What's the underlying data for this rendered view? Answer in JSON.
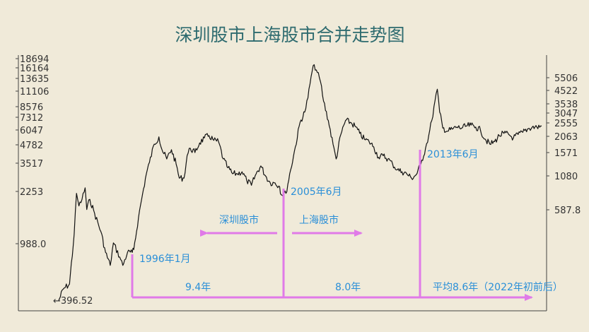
{
  "chart_data": {
    "type": "line",
    "title": "深圳股市上海股市合并走势图",
    "y_scale": "log",
    "left_axis_ticks": [
      "18694",
      "16164",
      "13635",
      "11106",
      "8576",
      "7312",
      "6047",
      "4782",
      "3517",
      "2253",
      "988.0"
    ],
    "right_axis_ticks": [
      "5506",
      "4522",
      "3538",
      "3047",
      "2555",
      "2063",
      "1571",
      "1080",
      "587.8"
    ],
    "min_label": "←396.52",
    "series": [
      {
        "x": [
          1991.3,
          1991.6,
          1992.0,
          1992.3,
          1992.45,
          1992.6,
          1992.8,
          1993.0,
          1993.1,
          1993.3,
          1993.6,
          1994.0,
          1994.3,
          1994.6,
          1994.8,
          1995.2,
          1995.4,
          1995.7,
          1996.0,
          1996.1,
          1996.4,
          1996.6,
          1996.9,
          1997.1,
          1997.4,
          1997.7,
          1997.9,
          1998.2,
          1998.5,
          1998.8,
          1999.0,
          1999.3,
          1999.5,
          1999.7,
          2000.0,
          2000.3,
          2000.6,
          2000.9,
          2001.2,
          2001.5,
          2001.8,
          2002.1,
          2002.4,
          2002.7,
          2003.0,
          2003.3,
          2003.6,
          2003.9,
          2004.2,
          2004.5,
          2004.8,
          2005.1,
          2005.4,
          2005.5,
          2005.8,
          2006.1,
          2006.4,
          2006.7,
          2007.0,
          2007.2,
          2007.4,
          2007.6,
          2007.8,
          2008.0,
          2008.2,
          2008.5,
          2008.8,
          2009.0,
          2009.3,
          2009.6,
          2009.9,
          2010.2,
          2010.5,
          2010.8,
          2011.1,
          2011.4,
          2011.7,
          2012.0,
          2012.3,
          2012.6,
          2012.9,
          2013.2,
          2013.5,
          2013.8,
          2014.1,
          2014.4,
          2014.7,
          2014.9,
          2015.1,
          2015.3,
          2015.45,
          2015.6,
          2015.8,
          2016.1,
          2016.4,
          2016.7,
          2017.0,
          2017.3,
          2017.6,
          2017.9,
          2018.2,
          2018.5,
          2018.8,
          2019.1,
          2019.4,
          2019.7,
          2020.0,
          2020.3,
          2020.6,
          2020.9,
          2021.2,
          2021.5,
          2021.8,
          2022.1
        ],
        "y": [
          396.52,
          480,
          520,
          1150,
          2200,
          1800,
          2000,
          2400,
          1700,
          2000,
          1600,
          1200,
          860,
          700,
          1000,
          800,
          700,
          860,
          860,
          900,
          1500,
          2000,
          3000,
          3600,
          4800,
          5400,
          4400,
          3800,
          4400,
          3500,
          2800,
          2800,
          4000,
          4500,
          4200,
          4900,
          5300,
          5500,
          5100,
          5000,
          3800,
          3300,
          3000,
          3000,
          3100,
          2700,
          2500,
          3000,
          3400,
          2900,
          2600,
          2600,
          2450,
          2150,
          2200,
          3200,
          4600,
          6800,
          8000,
          10000,
          14000,
          17000,
          15000,
          13000,
          9500,
          7000,
          4800,
          3800,
          5600,
          7000,
          6800,
          6400,
          5700,
          5200,
          5000,
          4600,
          3900,
          4000,
          3800,
          3500,
          3200,
          3100,
          3000,
          2800,
          2950,
          3500,
          4500,
          5500,
          7000,
          9500,
          11500,
          8000,
          6200,
          5900,
          6100,
          6300,
          6200,
          6400,
          6500,
          6300,
          6000,
          5200,
          4800,
          5000,
          5500,
          5700,
          5600,
          5300,
          5600,
          5800,
          6100,
          6300,
          6300,
          6400
        ]
      }
    ],
    "annotations": {
      "start_1996": "1996年1月",
      "point_2005": "2005年6月",
      "point_2013": "2013年6月",
      "shenzhen_label": "深圳股市",
      "shanghai_label": "上海股市",
      "span_1": "9.4年",
      "span_2": "8.0年",
      "average": "平均8.6年（2022年初前后）"
    },
    "colors": {
      "background": "#f0ead9",
      "title": "#2e6b6f",
      "line": "#111111",
      "arrows": "#e07ae8",
      "annotation_text": "#2a8fd8"
    },
    "grid": false
  }
}
